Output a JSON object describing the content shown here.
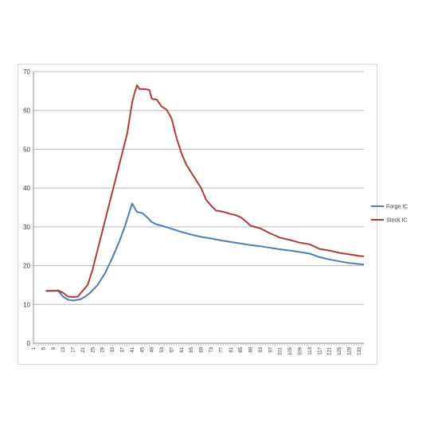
{
  "chart_data": {
    "type": "line",
    "title": "",
    "xlabel": "",
    "ylabel": "",
    "ylim": [
      0,
      70
    ],
    "yticks": [
      0,
      10,
      20,
      30,
      40,
      50,
      60,
      70
    ],
    "xticks": [
      1,
      5,
      9,
      13,
      17,
      21,
      25,
      29,
      33,
      37,
      41,
      45,
      49,
      53,
      57,
      61,
      65,
      69,
      73,
      77,
      81,
      85,
      89,
      93,
      97,
      101,
      105,
      109,
      113,
      117,
      121,
      125,
      129,
      133
    ],
    "x_range": [
      1,
      135
    ],
    "grid": "horizontal",
    "legend": "right",
    "series": [
      {
        "name": "Forge IC",
        "color": "#4a7eb5",
        "points": [
          [
            6,
            13.5
          ],
          [
            9,
            13.5
          ],
          [
            11,
            13.5
          ],
          [
            13,
            12
          ],
          [
            15,
            11.2
          ],
          [
            17,
            11
          ],
          [
            20,
            11.3
          ],
          [
            22,
            12
          ],
          [
            24,
            13
          ],
          [
            27,
            15
          ],
          [
            30,
            18
          ],
          [
            33,
            22
          ],
          [
            36,
            26.5
          ],
          [
            38,
            30
          ],
          [
            40,
            34
          ],
          [
            41,
            36
          ],
          [
            43,
            33.8
          ],
          [
            45,
            33.6
          ],
          [
            47,
            32.5
          ],
          [
            49,
            31.2
          ],
          [
            51,
            30.6
          ],
          [
            53,
            30.3
          ],
          [
            57,
            29.5
          ],
          [
            61,
            28.7
          ],
          [
            65,
            28
          ],
          [
            69,
            27.4
          ],
          [
            73,
            27
          ],
          [
            77,
            26.5
          ],
          [
            81,
            26.1
          ],
          [
            85,
            25.7
          ],
          [
            89,
            25.3
          ],
          [
            93,
            25
          ],
          [
            97,
            24.6
          ],
          [
            101,
            24.2
          ],
          [
            105,
            23.9
          ],
          [
            109,
            23.5
          ],
          [
            113,
            23.1
          ],
          [
            117,
            22.2
          ],
          [
            121,
            21.6
          ],
          [
            125,
            21.1
          ],
          [
            129,
            20.7
          ],
          [
            133,
            20.4
          ],
          [
            135,
            20.3
          ]
        ]
      },
      {
        "name": "Stock IC",
        "color": "#b03b38",
        "points": [
          [
            6,
            13.5
          ],
          [
            9,
            13.5
          ],
          [
            11,
            13.6
          ],
          [
            13,
            13
          ],
          [
            15,
            12
          ],
          [
            17,
            11.9
          ],
          [
            19,
            12
          ],
          [
            21,
            13.5
          ],
          [
            23,
            15
          ],
          [
            25,
            19
          ],
          [
            27,
            24
          ],
          [
            29,
            29
          ],
          [
            31,
            34
          ],
          [
            33,
            39
          ],
          [
            35,
            44
          ],
          [
            37,
            49
          ],
          [
            39,
            54
          ],
          [
            40,
            58
          ],
          [
            41,
            62
          ],
          [
            42,
            64.5
          ],
          [
            43,
            66.5
          ],
          [
            44,
            65.5
          ],
          [
            46,
            65.5
          ],
          [
            48,
            65.3
          ],
          [
            49,
            63
          ],
          [
            51,
            62.8
          ],
          [
            53,
            61
          ],
          [
            55,
            60.2
          ],
          [
            57,
            58
          ],
          [
            59,
            53
          ],
          [
            61,
            49
          ],
          [
            63,
            46
          ],
          [
            65,
            44
          ],
          [
            67,
            42
          ],
          [
            69,
            40
          ],
          [
            71,
            37
          ],
          [
            73,
            35.5
          ],
          [
            75,
            34.2
          ],
          [
            77,
            34
          ],
          [
            79,
            33.7
          ],
          [
            81,
            33.3
          ],
          [
            83,
            33
          ],
          [
            85,
            32.5
          ],
          [
            87,
            31.5
          ],
          [
            89,
            30.3
          ],
          [
            93,
            29.6
          ],
          [
            97,
            28.3
          ],
          [
            101,
            27.2
          ],
          [
            105,
            26.6
          ],
          [
            109,
            25.9
          ],
          [
            113,
            25.5
          ],
          [
            117,
            24.3
          ],
          [
            121,
            23.9
          ],
          [
            125,
            23.3
          ],
          [
            129,
            22.9
          ],
          [
            133,
            22.5
          ],
          [
            135,
            22.4
          ]
        ]
      }
    ]
  }
}
